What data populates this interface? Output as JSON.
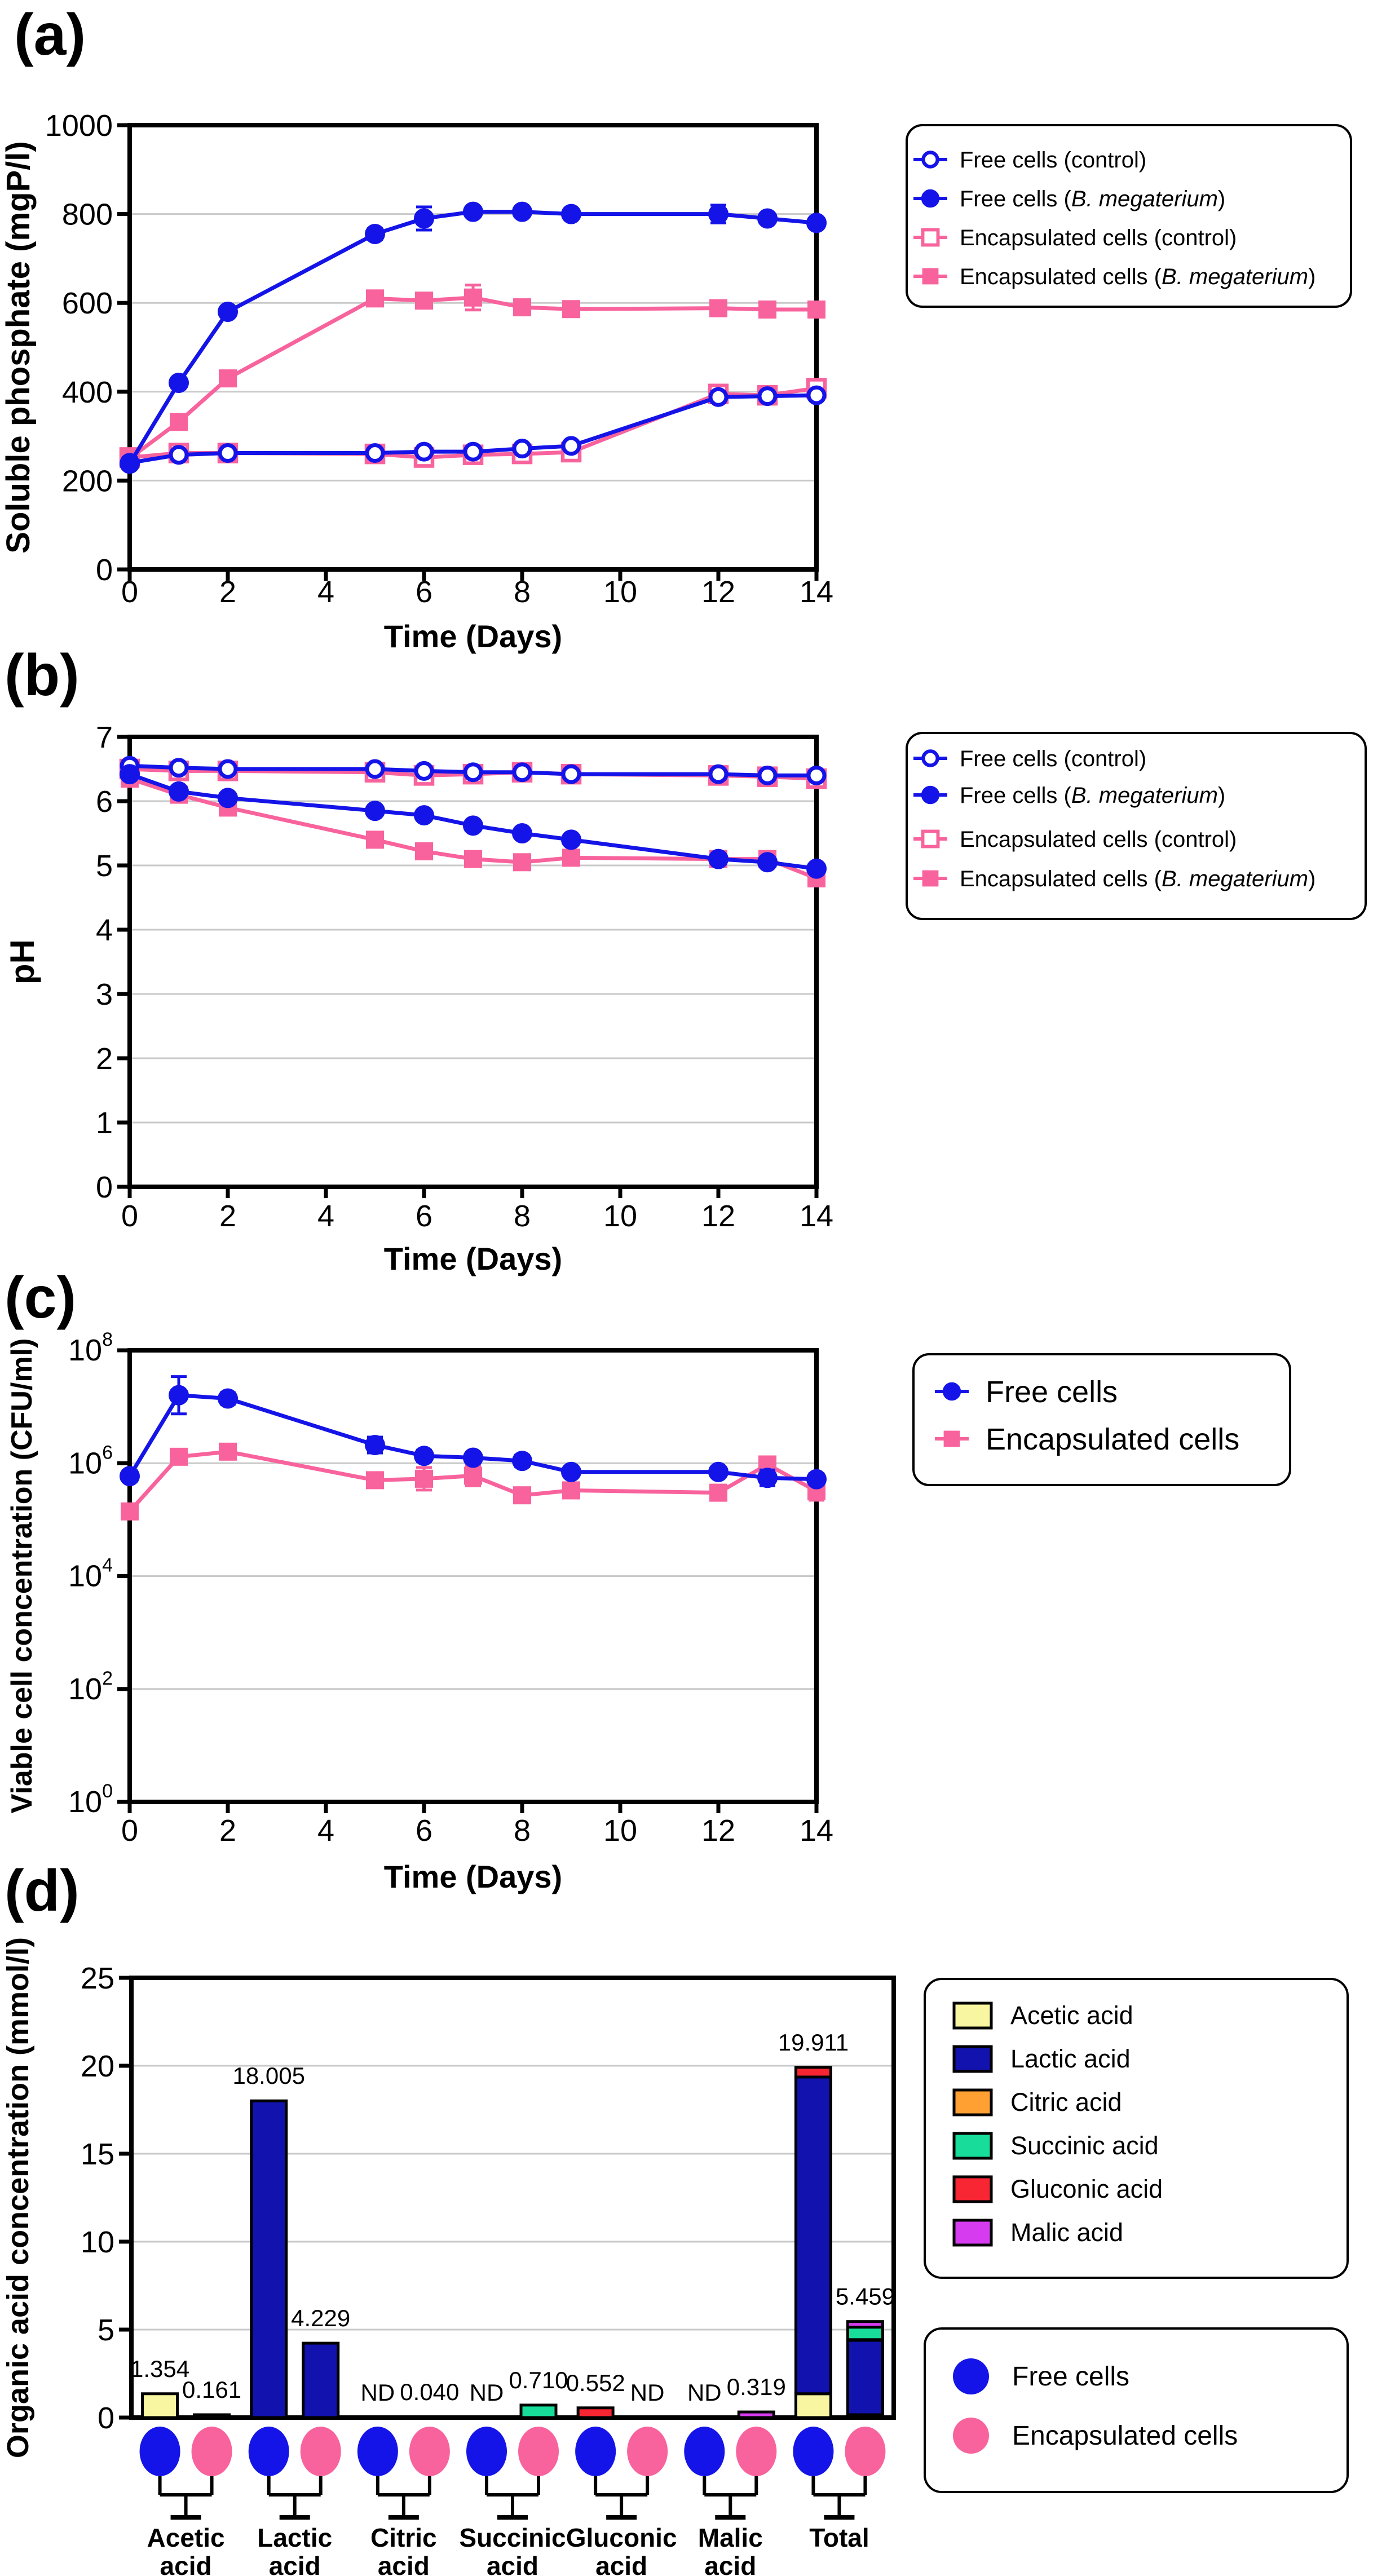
{
  "figure_type": "multi-panel scientific figure",
  "colors": {
    "blue": "#1414E8",
    "pink": "#F8639D",
    "grid": "#C9C9C9",
    "frame": "#000000",
    "acid_colors": {
      "acetic": "#F8F6A0",
      "lactic": "#1212AE",
      "citric": "#FFA033",
      "succinic": "#17DC9A",
      "gluconic": "#F82532",
      "malic": "#D73BF0"
    }
  },
  "chart_data": [
    {
      "panel": "a",
      "panel_label": "(a)",
      "type": "line",
      "xlabel": "Time (Days)",
      "ylabel": "Soluble phosphate (mgP/l)",
      "xlim": [
        0,
        14
      ],
      "ylim": [
        0,
        1000
      ],
      "x_ticks": [
        0,
        2,
        4,
        6,
        8,
        10,
        12,
        14
      ],
      "y_ticks": [
        0,
        200,
        400,
        600,
        800,
        1000
      ],
      "grid": [
        200,
        400,
        600,
        800
      ],
      "legend_position": "right-top",
      "x": [
        0,
        1,
        2,
        5,
        6,
        7,
        8,
        9,
        12,
        13,
        14
      ],
      "series": [
        {
          "key": "free-control",
          "name": "Free cells (control)",
          "name_parts": {
            "pre": "Free cells (control)",
            "italic": "",
            "post": ""
          },
          "color": "blue",
          "marker": "open-circle",
          "values": [
            240,
            258,
            262,
            262,
            265,
            265,
            272,
            278,
            388,
            390,
            392
          ],
          "err": [
            12,
            6,
            6,
            8,
            8,
            8,
            10,
            10,
            12,
            8,
            10
          ]
        },
        {
          "key": "free-bmeg",
          "name": "Free cells (B. megaterium)",
          "name_parts": {
            "pre": "Free cells (",
            "italic": "B. megaterium",
            "post": ")"
          },
          "color": "blue",
          "marker": "filled-circle",
          "values": [
            238,
            420,
            580,
            755,
            790,
            805,
            805,
            800,
            800,
            790,
            780
          ],
          "err": [
            10,
            10,
            8,
            12,
            26,
            10,
            10,
            8,
            20,
            8,
            10
          ]
        },
        {
          "key": "encap-control",
          "name": "Encapsulated cells (control)",
          "name_parts": {
            "pre": "Encapsulated cells (control)",
            "italic": "",
            "post": ""
          },
          "color": "pink",
          "marker": "open-square",
          "values": [
            252,
            262,
            262,
            260,
            252,
            258,
            260,
            264,
            395,
            392,
            408
          ],
          "err": [
            8,
            6,
            6,
            10,
            20,
            10,
            10,
            8,
            10,
            8,
            14
          ]
        },
        {
          "key": "encap-bmeg",
          "name": "Encapsulated cells (B. megaterium)",
          "name_parts": {
            "pre": "Encapsulated cells (",
            "italic": "B. megaterium",
            "post": ")"
          },
          "color": "pink",
          "marker": "filled-square",
          "values": [
            250,
            332,
            430,
            610,
            605,
            612,
            590,
            586,
            588,
            585,
            585
          ],
          "err": [
            8,
            8,
            8,
            14,
            10,
            28,
            10,
            8,
            8,
            8,
            10
          ]
        }
      ]
    },
    {
      "panel": "b",
      "panel_label": "(b)",
      "type": "line",
      "xlabel": "Time (Days)",
      "ylabel": "pH",
      "xlim": [
        0,
        14
      ],
      "ylim": [
        0,
        7
      ],
      "x_ticks": [
        0,
        2,
        4,
        6,
        8,
        10,
        12,
        14
      ],
      "y_ticks": [
        0,
        1,
        2,
        3,
        4,
        5,
        6,
        7
      ],
      "grid": [
        1,
        2,
        3,
        4,
        5,
        6
      ],
      "legend_position": "right-top",
      "x": [
        0,
        1,
        2,
        5,
        6,
        7,
        8,
        9,
        12,
        13,
        14
      ],
      "series": [
        {
          "key": "free-control",
          "name": "Free cells (control)",
          "name_parts": {
            "pre": "Free cells (control)",
            "italic": "",
            "post": ""
          },
          "color": "blue",
          "marker": "open-circle",
          "values": [
            6.55,
            6.52,
            6.5,
            6.5,
            6.47,
            6.45,
            6.45,
            6.42,
            6.42,
            6.4,
            6.4
          ],
          "err": [
            0.04,
            0.04,
            0.04,
            0.04,
            0.04,
            0.04,
            0.04,
            0.04,
            0.04,
            0.04,
            0.04
          ]
        },
        {
          "key": "free-bmeg",
          "name": "Free cells (B. megaterium)",
          "name_parts": {
            "pre": "Free cells (",
            "italic": "B. megaterium",
            "post": ")"
          },
          "color": "blue",
          "marker": "filled-circle",
          "values": [
            6.42,
            6.15,
            6.05,
            5.85,
            5.78,
            5.62,
            5.5,
            5.4,
            5.1,
            5.05,
            4.95
          ],
          "err": [
            0.04,
            0.04,
            0.04,
            0.04,
            0.04,
            0.04,
            0.04,
            0.04,
            0.05,
            0.06,
            0.06
          ]
        },
        {
          "key": "encap-control",
          "name": "Encapsulated cells (control)",
          "name_parts": {
            "pre": "Encapsulated cells (control)",
            "italic": "",
            "post": ""
          },
          "color": "pink",
          "marker": "open-square",
          "values": [
            6.5,
            6.47,
            6.47,
            6.45,
            6.4,
            6.42,
            6.45,
            6.42,
            6.4,
            6.38,
            6.35
          ],
          "err": [
            0.04,
            0.04,
            0.04,
            0.04,
            0.04,
            0.04,
            0.04,
            0.04,
            0.04,
            0.04,
            0.04
          ]
        },
        {
          "key": "encap-bmeg",
          "name": "Encapsulated cells (B. megaterium)",
          "name_parts": {
            "pre": "Encapsulated cells (",
            "italic": "B. megaterium",
            "post": ")"
          },
          "color": "pink",
          "marker": "filled-square",
          "values": [
            6.35,
            6.1,
            5.9,
            5.4,
            5.22,
            5.1,
            5.05,
            5.12,
            5.1,
            5.1,
            4.8
          ],
          "err": [
            0.04,
            0.04,
            0.04,
            0.04,
            0.04,
            0.04,
            0.04,
            0.04,
            0.04,
            0.05,
            0.12
          ]
        }
      ]
    },
    {
      "panel": "c",
      "panel_label": "(c)",
      "type": "line-log",
      "xlabel": "Time (Days)",
      "ylabel": "Viable cell concentration (CFU/ml)",
      "xlim": [
        0,
        14
      ],
      "ylim_exponents": [
        0,
        8
      ],
      "x_ticks": [
        0,
        2,
        4,
        6,
        8,
        10,
        12,
        14
      ],
      "y_tick_exponents": [
        0,
        2,
        4,
        6,
        8
      ],
      "grid_exponents": [
        2,
        4,
        6
      ],
      "legend_position": "right-top",
      "x": [
        0,
        1,
        2,
        5,
        6,
        7,
        8,
        9,
        12,
        13,
        14
      ],
      "series": [
        {
          "key": "free-cells",
          "name": "Free cells",
          "name_parts": {
            "pre": "Free cells",
            "italic": "",
            "post": ""
          },
          "color": "blue",
          "marker": "filled-circle",
          "values": [
            590000,
            16000000,
            14000000,
            2100000,
            1350000,
            1250000,
            1100000,
            700000,
            700000,
            550000,
            520000
          ],
          "err_log10": [
            0.1,
            0.33,
            0.1,
            0.14,
            0.1,
            0.09,
            0.1,
            0.06,
            0.08,
            0.14,
            0.1
          ]
        },
        {
          "key": "encapsulated-cells",
          "name": "Encapsulated cells",
          "name_parts": {
            "pre": "Encapsulated cells",
            "italic": "",
            "post": ""
          },
          "color": "pink",
          "marker": "filled-square",
          "values": [
            140000,
            1300000,
            1600000,
            500000,
            530000,
            600000,
            270000,
            330000,
            300000,
            950000,
            320000
          ],
          "err_log10": [
            0.08,
            0.06,
            0.06,
            0.1,
            0.2,
            0.18,
            0.1,
            0.08,
            0.06,
            0.1,
            0.16
          ]
        }
      ]
    },
    {
      "panel": "d",
      "panel_label": "(d)",
      "type": "stacked-bar",
      "xlabel": "",
      "ylabel": "Organic acid concentration (mmol/l)",
      "ylim": [
        0,
        25
      ],
      "y_ticks": [
        0,
        5,
        10,
        15,
        20,
        25
      ],
      "grid": [
        5,
        10,
        15,
        20
      ],
      "nd_text": "ND",
      "acid_legend": [
        {
          "key": "acetic",
          "label": "Acetic acid"
        },
        {
          "key": "lactic",
          "label": "Lactic acid"
        },
        {
          "key": "citric",
          "label": "Citric acid"
        },
        {
          "key": "succinic",
          "label": "Succinic acid"
        },
        {
          "key": "gluconic",
          "label": "Gluconic acid"
        },
        {
          "key": "malic",
          "label": "Malic acid"
        }
      ],
      "cell_legend": [
        {
          "key": "free",
          "label": "Free cells",
          "color": "blue"
        },
        {
          "key": "encap",
          "label": "Encapsulated cells",
          "color": "pink"
        }
      ],
      "groups": [
        {
          "category": "Acetic acid",
          "label_lines": [
            "Acetic",
            "acid"
          ],
          "free": {
            "label": "1.354",
            "total": 1.354,
            "segments": [
              {
                "acid": "acetic",
                "value": 1.354
              }
            ]
          },
          "encap": {
            "label": "0.161",
            "total": 0.161,
            "segments": [
              {
                "acid": "acetic",
                "value": 0.161
              }
            ]
          }
        },
        {
          "category": "Lactic acid",
          "label_lines": [
            "Lactic",
            "acid"
          ],
          "free": {
            "label": "18.005",
            "total": 18.005,
            "segments": [
              {
                "acid": "lactic",
                "value": 18.005
              }
            ]
          },
          "encap": {
            "label": "4.229",
            "total": 4.229,
            "segments": [
              {
                "acid": "lactic",
                "value": 4.229
              }
            ]
          }
        },
        {
          "category": "Citric acid",
          "label_lines": [
            "Citric",
            "acid"
          ],
          "free": {
            "label": "ND",
            "total": 0,
            "segments": []
          },
          "encap": {
            "label": "0.040",
            "total": 0.04,
            "segments": [
              {
                "acid": "citric",
                "value": 0.04
              }
            ]
          }
        },
        {
          "category": "Succinic acid",
          "label_lines": [
            "Succinic",
            "acid"
          ],
          "free": {
            "label": "ND",
            "total": 0,
            "segments": []
          },
          "encap": {
            "label": "0.710",
            "total": 0.71,
            "segments": [
              {
                "acid": "succinic",
                "value": 0.71
              }
            ]
          }
        },
        {
          "category": "Gluconic acid",
          "label_lines": [
            "Gluconic",
            "acid"
          ],
          "free": {
            "label": "0.552",
            "total": 0.552,
            "segments": [
              {
                "acid": "gluconic",
                "value": 0.552
              }
            ]
          },
          "encap": {
            "label": "ND",
            "total": 0,
            "segments": []
          }
        },
        {
          "category": "Malic acid",
          "label_lines": [
            "Malic",
            "acid"
          ],
          "free": {
            "label": "ND",
            "total": 0,
            "segments": []
          },
          "encap": {
            "label": "0.319",
            "total": 0.319,
            "segments": [
              {
                "acid": "malic",
                "value": 0.319
              }
            ]
          }
        },
        {
          "category": "Total",
          "label_lines": [
            "Total"
          ],
          "free": {
            "label": "19.911",
            "total": 19.911,
            "segments": [
              {
                "acid": "acetic",
                "value": 1.354
              },
              {
                "acid": "lactic",
                "value": 18.005
              },
              {
                "acid": "gluconic",
                "value": 0.552
              }
            ]
          },
          "encap": {
            "label": "5.459",
            "total": 5.459,
            "segments": [
              {
                "acid": "acetic",
                "value": 0.161
              },
              {
                "acid": "lactic",
                "value": 4.229
              },
              {
                "acid": "citric",
                "value": 0.04
              },
              {
                "acid": "succinic",
                "value": 0.71
              },
              {
                "acid": "malic",
                "value": 0.319
              }
            ]
          }
        }
      ]
    }
  ]
}
